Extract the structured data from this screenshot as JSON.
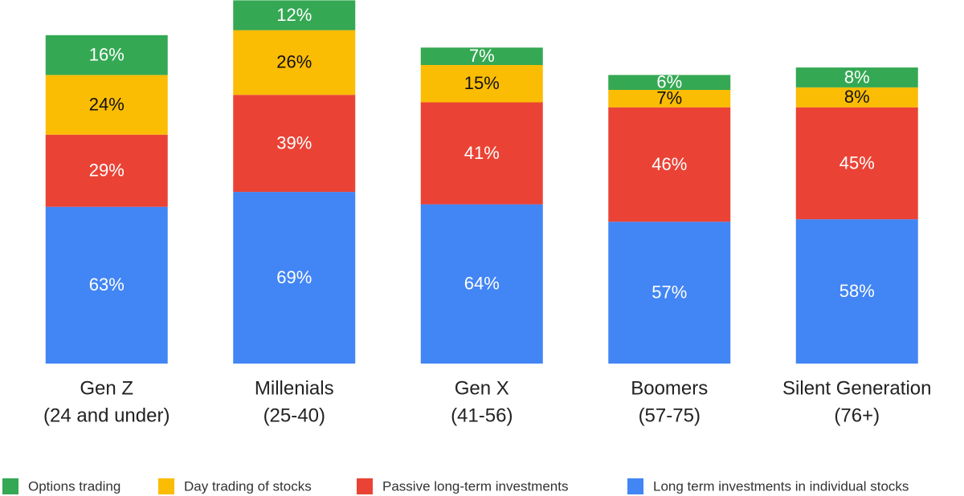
{
  "chart_data": {
    "type": "stacked_bar",
    "categories": [
      [
        "Gen Z",
        "(24 and under)"
      ],
      [
        "Millenials",
        "(25-40)"
      ],
      [
        "Gen X",
        "(41-56)"
      ],
      [
        "Boomers",
        "(57-75)"
      ],
      [
        "Silent Generation",
        "(76+)"
      ]
    ],
    "series": [
      {
        "name": "Options trading",
        "color": "#34a853",
        "values": [
          16,
          12,
          7,
          6,
          8
        ],
        "value_labels": [
          "16%",
          "12%",
          "7%",
          "6%",
          "8%"
        ]
      },
      {
        "name": "Day trading of stocks",
        "color": "#fbbc04",
        "values": [
          24,
          26,
          15,
          7,
          8
        ],
        "value_labels": [
          "24%",
          "26%",
          "15%",
          "7%",
          "8%"
        ]
      },
      {
        "name": "Passive long-term investments",
        "color": "#ea4335",
        "values": [
          29,
          39,
          41,
          46,
          45
        ],
        "value_labels": [
          "29%",
          "39%",
          "41%",
          "46%",
          "45%"
        ]
      },
      {
        "name": "Long term investments in individual stocks",
        "color": "#4285f4",
        "values": [
          63,
          69,
          64,
          57,
          58
        ],
        "value_labels": [
          "63%",
          "69%",
          "64%",
          "57%",
          "58%"
        ]
      }
    ],
    "legend": "bottom"
  }
}
